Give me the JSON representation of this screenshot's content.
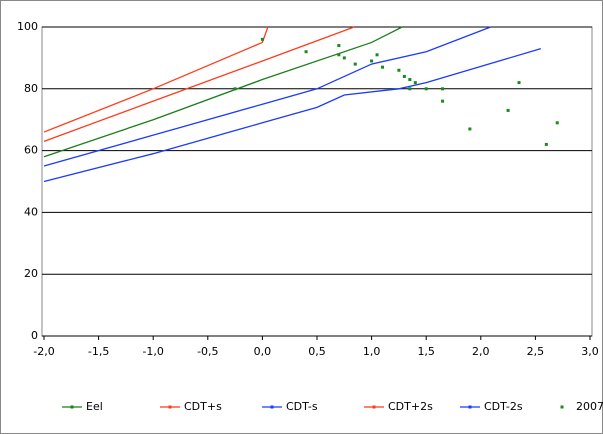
{
  "chart_data": {
    "type": "line",
    "xlim": [
      -2,
      3
    ],
    "ylim": [
      0,
      100
    ],
    "xticks": [
      {
        "value": -2,
        "label": "-2,0"
      },
      {
        "value": -1.5,
        "label": "-1,5"
      },
      {
        "value": -1,
        "label": "-1,0"
      },
      {
        "value": -0.5,
        "label": "-0,5"
      },
      {
        "value": 0,
        "label": "0,0"
      },
      {
        "value": 0.5,
        "label": "0,5"
      },
      {
        "value": 1,
        "label": "1,0"
      },
      {
        "value": 1.5,
        "label": "1,5"
      },
      {
        "value": 2,
        "label": "2,0"
      },
      {
        "value": 2.5,
        "label": "2,5"
      },
      {
        "value": 3,
        "label": "3,0"
      }
    ],
    "yticks": [
      0,
      20,
      40,
      60,
      80,
      100
    ],
    "grid": true,
    "legend": "bottom",
    "series": [
      {
        "name": "Eel",
        "color": "#1a7f1a",
        "kind": "line",
        "x": [
          -2,
          -1,
          0,
          1,
          1.28
        ],
        "values": [
          58,
          70,
          83,
          95,
          100
        ]
      },
      {
        "name": "CDT+s",
        "color": "#ff3b1a",
        "kind": "line",
        "x": [
          -2,
          -1,
          0,
          0.84
        ],
        "values": [
          63,
          76,
          89,
          100
        ]
      },
      {
        "name": "CDT-s",
        "color": "#1a3bff",
        "kind": "line",
        "x": [
          -2,
          -1,
          0,
          0.5,
          0.75,
          1,
          1.5,
          2.09
        ],
        "values": [
          55,
          65,
          75,
          80,
          84,
          88,
          92,
          100
        ]
      },
      {
        "name": "CDT+2s",
        "color": "#ff3b1a",
        "kind": "line",
        "x": [
          -2,
          -1,
          0,
          0.05
        ],
        "values": [
          66,
          80,
          95,
          100
        ]
      },
      {
        "name": "CDT-2s",
        "color": "#1a3bff",
        "kind": "line",
        "x": [
          -2,
          -1,
          0,
          0.5,
          0.75,
          1.25,
          1.5,
          2.55
        ],
        "values": [
          50,
          59,
          69,
          74,
          78,
          80,
          82,
          93
        ]
      },
      {
        "name": "2007",
        "color": "#1a8a1a",
        "kind": "scatter",
        "x": [
          0,
          0.4,
          0.7,
          0.75,
          0.7,
          0.85,
          1,
          1.05,
          1.1,
          1.25,
          1.3,
          1.35,
          1.4,
          1.35,
          1.5,
          1.65,
          1.65,
          1.9,
          2.25,
          2.35,
          2.6,
          2.7,
          -0.25
        ],
        "values": [
          96,
          92,
          94,
          90,
          91,
          88,
          89,
          91,
          87,
          86,
          84,
          83,
          82,
          80,
          80,
          80,
          76,
          67,
          73,
          82,
          62,
          69,
          80
        ]
      }
    ]
  }
}
